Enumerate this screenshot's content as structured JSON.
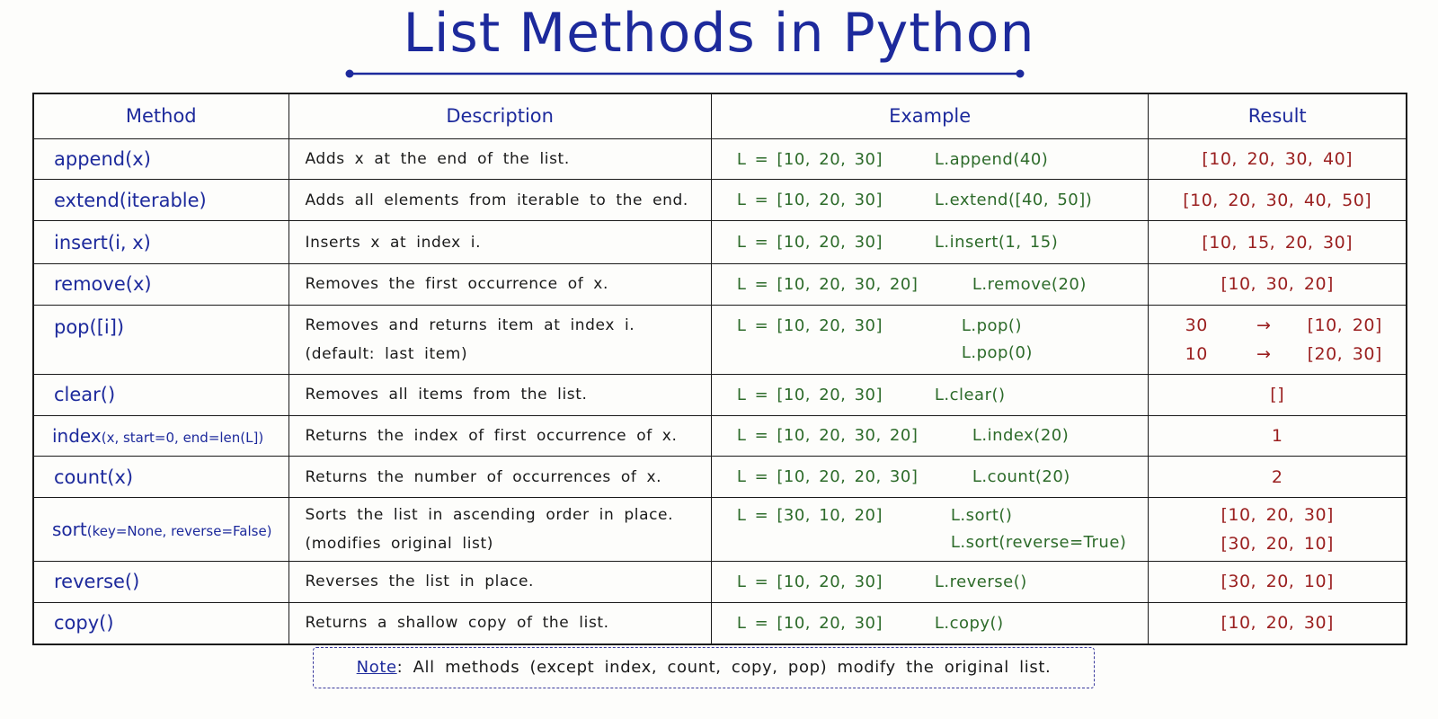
{
  "title": "List Methods in Python",
  "headers": {
    "method": "Method",
    "description": "Description",
    "example": "Example",
    "result": "Result"
  },
  "rows": [
    {
      "method": "append(x)",
      "description": "Adds x at the end of the list.",
      "example_list": "L = [10, 20, 30]",
      "example_call": "L.append(40)",
      "result": "[10, 20, 30, 40]"
    },
    {
      "method": "extend(iterable)",
      "description": "Adds all elements from iterable to the end.",
      "example_list": "L = [10, 20, 30]",
      "example_call": "L.extend([40, 50])",
      "result": "[10, 20, 30, 40, 50]"
    },
    {
      "method": "insert(i, x)",
      "description": "Inserts x at index i.",
      "example_list": "L = [10, 20, 30]",
      "example_call": "L.insert(1, 15)",
      "result": "[10, 15, 20, 30]"
    },
    {
      "method": "remove(x)",
      "description": "Removes the first occurrence of x.",
      "example_list": "L = [10, 20, 30, 20]",
      "example_call": "L.remove(20)",
      "result": "[10, 30, 20]"
    },
    {
      "method": "pop([i])",
      "description": "Removes and returns item at index i.",
      "description_2": "(default: last item)",
      "example_list": "L = [10, 20, 30]",
      "example_call": "L.pop()",
      "example_call_2": "L.pop(0)",
      "result_value": "30",
      "result_arrow": "→",
      "result": "[10, 20]",
      "result_value_2": "10",
      "result_arrow_2": "→",
      "result_2": "[20, 30]"
    },
    {
      "method": "clear()",
      "description": "Removes all items from the list.",
      "example_list": "L = [10, 20, 30]",
      "example_call": "L.clear()",
      "result": "[]"
    },
    {
      "method": "index",
      "method_args": "(x, start=0, end=len(L])",
      "description": "Returns the index of first occurrence of x.",
      "example_list": "L = [10, 20, 30, 20]",
      "example_call": "L.index(20)",
      "result": "1"
    },
    {
      "method": "count(x)",
      "description": "Returns the number of occurrences of x.",
      "example_list": "L = [10, 20, 20, 30]",
      "example_call": "L.count(20)",
      "result": "2"
    },
    {
      "method": "sort",
      "method_args": "(key=None, reverse=False)",
      "description": "Sorts the list in ascending order in place.",
      "description_2": "(modifies original list)",
      "example_list": "L = [30, 10, 20]",
      "example_call": "L.sort()",
      "example_call_2": "L.sort(reverse=True)",
      "result": "[10, 20, 30]",
      "result_2": "[30, 20, 10]"
    },
    {
      "method": "reverse()",
      "description": "Reverses the list in place.",
      "example_list": "L = [10, 20, 30]",
      "example_call": "L.reverse()",
      "result": "[30, 20, 10]"
    },
    {
      "method": "copy()",
      "description": "Returns a shallow copy of the list.",
      "example_list": "L = [10, 20, 30]",
      "example_call": "L.copy()",
      "result": "[10, 20, 30]"
    }
  ],
  "note": {
    "label": "Note",
    "text": ":  All methods (except index, count, copy, pop) modify the original list."
  }
}
